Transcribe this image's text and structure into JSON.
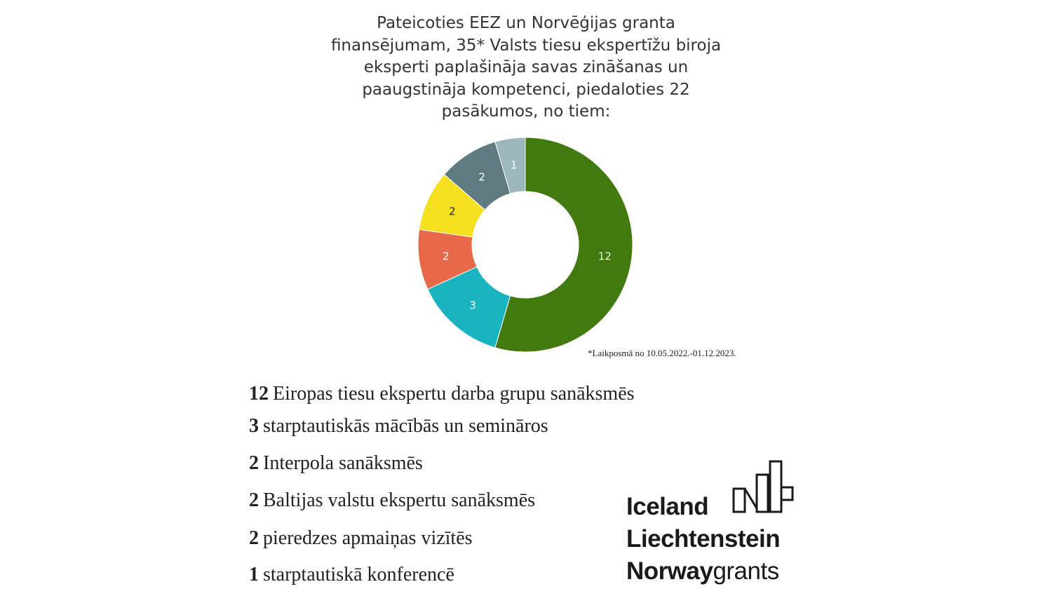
{
  "chart_data": {
    "type": "pie",
    "variant": "donut",
    "title": "Pateicoties EEZ un Norvēģijas granta finansējumam, 35* Valsts tiesu ekspertīžu biroja eksperti paplašināja savas zināšanas un paaugstināja kompetenci, piedaloties 22 pasākumos, no tiem:",
    "title_lines": [
      "Pateicoties EEZ un Norvēģijas granta",
      "finansējumam, 35* Valsts tiesu ekspertīžu biroja",
      "eksperti paplašināja savas zināšanas un",
      "paaugstināja kompetenci, piedaloties 22",
      "pasākumos, no tiem:"
    ],
    "values": [
      12,
      3,
      2,
      2,
      2,
      1
    ],
    "labels": [
      "12",
      "3",
      "2",
      "2",
      "2",
      "1"
    ],
    "colors": [
      "#437a0f",
      "#1ab3c0",
      "#e8694a",
      "#f5e11f",
      "#5f7a80",
      "#9cb8bd"
    ],
    "label_colors": [
      "#e8f0d8",
      "#ffffff",
      "#ffffff",
      "#222222",
      "#ffffff",
      "#ffffff"
    ],
    "start": "top",
    "direction": "clockwise",
    "footnote": "*Laikposmā no 10.05.2022.-01.12.2023."
  },
  "legend": [
    {
      "count": "12",
      "text": "Eiropas tiesu ekspertu darba grupu sanāksmēs"
    },
    {
      "count": "3",
      "text": "starptautiskās mācībās un semināros"
    },
    {
      "count": "2",
      "text": "Interpola sanāksmēs"
    },
    {
      "count": "2",
      "text": "Baltijas valstu ekspertu sanāksmēs"
    },
    {
      "count": "2",
      "text": "pieredzes apmaiņas vizītēs"
    },
    {
      "count": "1",
      "text": "starptautiskā konferencē"
    }
  ],
  "logo": {
    "line1": "Iceland",
    "line2": "Liechtenstein",
    "line3a": "Norway",
    "line3b": "grants"
  }
}
